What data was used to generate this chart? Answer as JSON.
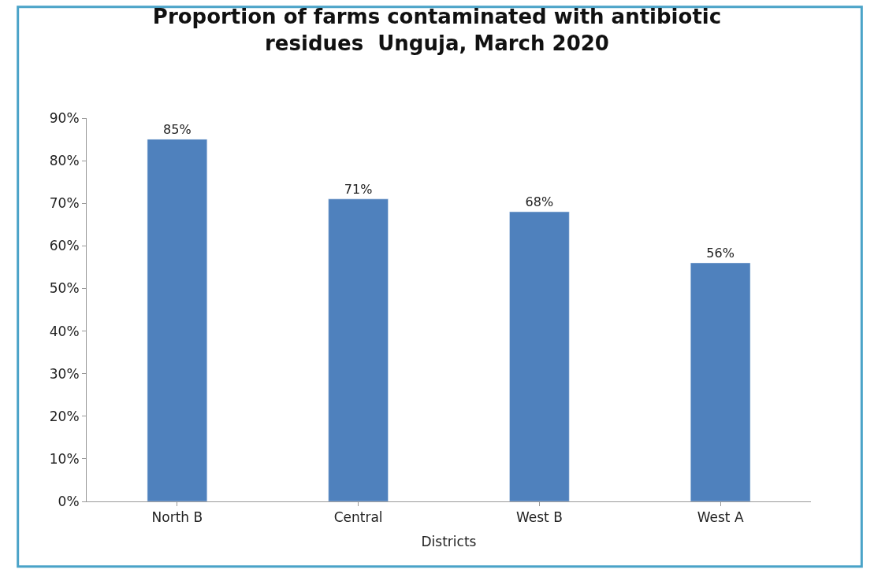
{
  "chart_data": {
    "type": "bar",
    "title": "Proportion of farms contaminated with antibiotic residues  Unguja, March 2020",
    "xlabel": "Districts",
    "categories": [
      "North B",
      "Central",
      "West B",
      "West A"
    ],
    "values": [
      85,
      71,
      68,
      56
    ],
    "value_labels": [
      "85%",
      "71%",
      "68%",
      "56%"
    ],
    "color": "#4f81bd",
    "ylim": [
      0,
      90
    ],
    "yticks": [
      {
        "value": 0,
        "label": "0%"
      },
      {
        "value": 10,
        "label": "10%"
      },
      {
        "value": 20,
        "label": "20%"
      },
      {
        "value": 30,
        "label": "30%"
      },
      {
        "value": 40,
        "label": "40%"
      },
      {
        "value": 50,
        "label": "50%"
      },
      {
        "value": 60,
        "label": "60%"
      },
      {
        "value": 70,
        "label": "70%"
      },
      {
        "value": 80,
        "label": "80%"
      },
      {
        "value": 90,
        "label": "90%"
      }
    ],
    "legend": false
  }
}
